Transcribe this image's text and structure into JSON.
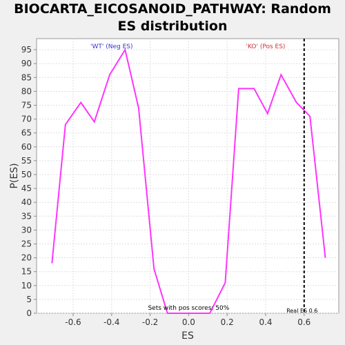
{
  "chart_data": {
    "type": "line",
    "title_line1": "BIOCARTA_EICOSANOID_PATHWAY: Random",
    "title_line2": "ES distribution",
    "xlabel": "ES",
    "ylabel": "P(ES)",
    "xlim": [
      -0.79,
      0.78
    ],
    "ylim": [
      0,
      99
    ],
    "x_ticks": [
      -0.6,
      -0.4,
      -0.2,
      0.0,
      0.2,
      0.4,
      0.6
    ],
    "x_tick_labels": [
      "-0.6",
      "-0.4",
      "-0.2",
      "0.0",
      "0.2",
      "0.4",
      "0.6"
    ],
    "y_ticks": [
      0,
      5,
      10,
      15,
      20,
      25,
      30,
      35,
      40,
      45,
      50,
      55,
      60,
      65,
      70,
      75,
      80,
      85,
      90,
      95
    ],
    "y_tick_labels": [
      "0",
      "5",
      "10",
      "15",
      "20",
      "25",
      "30",
      "35",
      "40",
      "45",
      "50",
      "55",
      "60",
      "65",
      "70",
      "75",
      "80",
      "85",
      "90",
      "95"
    ],
    "grid": true,
    "series": [
      {
        "color": "#ff33ff",
        "x": [
          -0.71,
          -0.64,
          -0.56,
          -0.49,
          -0.41,
          -0.33,
          -0.26,
          -0.18,
          -0.11,
          -0.03,
          0.04,
          0.11,
          0.19,
          0.26,
          0.34,
          0.41,
          0.48,
          0.56,
          0.63,
          0.71
        ],
        "y": [
          18,
          68,
          76,
          69,
          86,
          95,
          74,
          16,
          0,
          0,
          0,
          0,
          11,
          81,
          81,
          72,
          86,
          76,
          71,
          20
        ]
      }
    ],
    "real_es": 0.6,
    "annotations": {
      "neg_label": "'WT' (Neg ES)",
      "neg_color": "#3333cc",
      "pos_label": "'KO' (Pos ES)",
      "pos_color": "#cc3333",
      "pos_scores": "Sets with pos scores: 50%",
      "real_es_label": "Real ES 0.6"
    }
  }
}
